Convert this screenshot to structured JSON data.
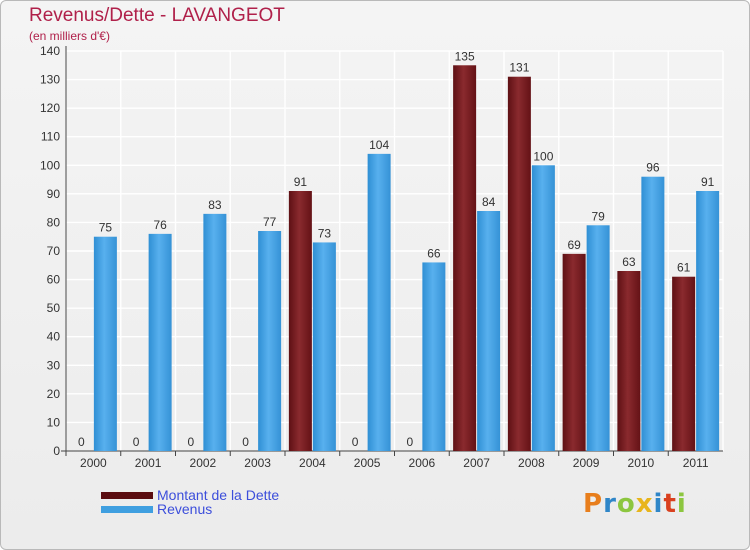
{
  "chart_data": {
    "type": "bar",
    "title": "Revenus/Dette - LAVANGEOT",
    "subtitle": "(en milliers d'€)",
    "categories": [
      "2000",
      "2001",
      "2002",
      "2003",
      "2004",
      "2005",
      "2006",
      "2007",
      "2008",
      "2009",
      "2010",
      "2011"
    ],
    "series": [
      {
        "name": "Montant de la Dette",
        "color": "#7a1e22",
        "values": [
          0,
          0,
          0,
          0,
          91,
          0,
          0,
          135,
          131,
          69,
          63,
          61
        ]
      },
      {
        "name": "Revenus",
        "color": "#3f9fe0",
        "values": [
          75,
          76,
          83,
          77,
          73,
          104,
          66,
          84,
          100,
          79,
          96,
          91
        ]
      }
    ],
    "ylim": [
      0,
      140
    ],
    "yticks": [
      0,
      10,
      20,
      30,
      40,
      50,
      60,
      70,
      80,
      90,
      100,
      110,
      120,
      130,
      140
    ],
    "grid": true,
    "legend_position": "bottom-left"
  },
  "logo": {
    "letters": [
      "P",
      "r",
      "o",
      "x",
      "i",
      "t",
      "i"
    ],
    "colors": [
      "#e87e1c",
      "#2f86c8",
      "#8cc63f",
      "#e8b51c",
      "#2f86c8",
      "#d9401f",
      "#8cc63f"
    ]
  }
}
